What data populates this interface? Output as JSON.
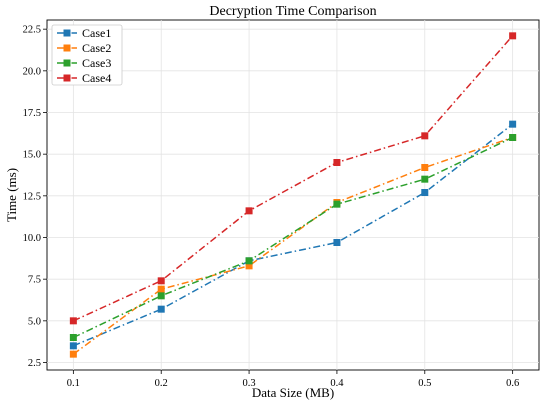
{
  "chart_data": {
    "type": "line",
    "title": "Decryption Time Comparison",
    "xlabel": "Data Size (MB)",
    "ylabel": "Time (ms)",
    "x": [
      0.1,
      0.2,
      0.3,
      0.4,
      0.5,
      0.6
    ],
    "x_tick_labels": [
      "0.1",
      "0.2",
      "0.3",
      "0.4",
      "0.5",
      "0.6"
    ],
    "y_ticks": [
      2.5,
      5.0,
      7.5,
      10.0,
      12.5,
      15.0,
      17.5,
      20.0,
      22.5
    ],
    "y_tick_labels": [
      "2.5",
      "5.0",
      "7.5",
      "10.0",
      "12.5",
      "15.0",
      "17.5",
      "20.0",
      "22.5"
    ],
    "xlim": [
      0.07,
      0.63
    ],
    "ylim": [
      2.05,
      23.05
    ],
    "grid": true,
    "legend_position": "top-left",
    "series": [
      {
        "name": "Case1",
        "color": "#1f77b4",
        "values": [
          3.5,
          5.7,
          8.6,
          9.7,
          12.7,
          16.8
        ]
      },
      {
        "name": "Case2",
        "color": "#ff7f0e",
        "values": [
          3.0,
          6.9,
          8.3,
          12.1,
          14.2,
          16.0
        ]
      },
      {
        "name": "Case3",
        "color": "#2ca02c",
        "values": [
          4.0,
          6.5,
          8.6,
          12.0,
          13.5,
          16.0
        ]
      },
      {
        "name": "Case4",
        "color": "#d62728",
        "values": [
          5.0,
          7.4,
          11.6,
          14.5,
          16.1,
          22.1
        ]
      }
    ]
  }
}
